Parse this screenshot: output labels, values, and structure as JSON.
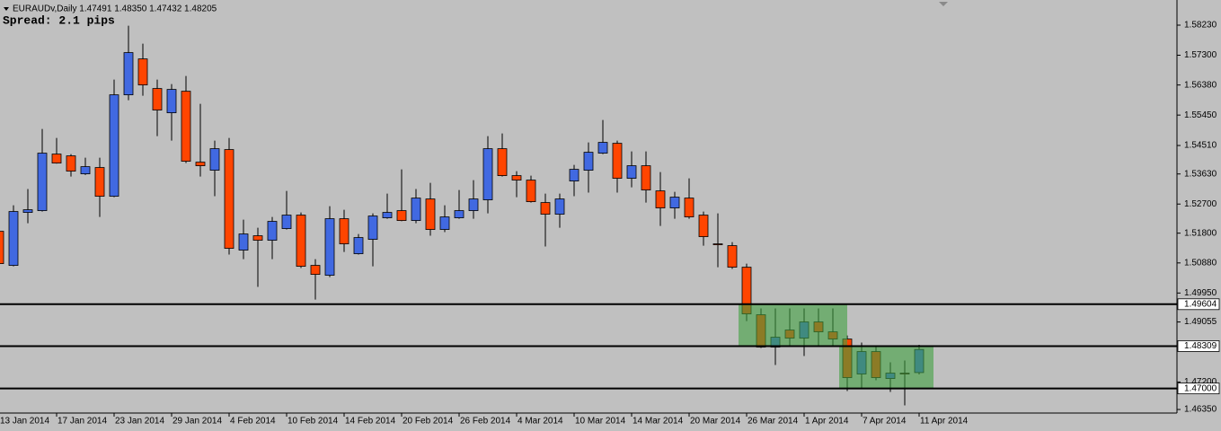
{
  "chart_data": {
    "type": "candlestick",
    "title": "EURAUDv,Daily 1.47491 1.48350 1.47432 1.48205",
    "subtitle": "Spread: 2.1 pips",
    "up_color": "#4169e1",
    "down_color": "#ff4500",
    "zone_color": "#3fa03f",
    "categories": [
      "13 Jan 2014",
      null,
      null,
      null,
      "17 Jan 2014",
      null,
      null,
      null,
      "23 Jan 2014",
      null,
      null,
      null,
      "29 Jan 2014",
      null,
      null,
      null,
      "4 Feb 2014",
      null,
      null,
      null,
      "10 Feb 2014",
      null,
      null,
      null,
      "14 Feb 2014",
      null,
      null,
      null,
      "20 Feb 2014",
      null,
      null,
      null,
      "26 Feb 2014",
      null,
      null,
      null,
      "4 Mar 2014",
      null,
      null,
      null,
      "10 Mar 2014",
      null,
      null,
      null,
      "14 Mar 2014",
      null,
      null,
      null,
      "20 Mar 2014",
      null,
      null,
      null,
      "26 Mar 2014",
      null,
      null,
      null,
      "1 Apr 2014",
      null,
      null,
      null,
      "7 Apr 2014",
      null,
      null,
      null,
      "11 Apr 2014"
    ],
    "open": [
      1.51858,
      1.50804,
      1.52441,
      1.52497,
      1.54245,
      1.54189,
      1.53634,
      1.53829,
      1.52941,
      1.56076,
      1.57186,
      1.56271,
      1.55521,
      1.56187,
      1.53995,
      1.53745,
      1.54384,
      1.51276,
      1.5172,
      1.51581,
      1.51942,
      1.52358,
      1.50804,
      1.50499,
      1.52247,
      1.51165,
      1.51609,
      1.52275,
      1.52497,
      1.52191,
      1.52857,
      1.51914,
      1.52275,
      1.52497,
      1.5283,
      1.54411,
      1.53579,
      1.5344,
      1.52746,
      1.52386,
      1.53412,
      1.53745,
      1.54273,
      1.54578,
      1.53496,
      1.53884,
      1.53107,
      1.5258,
      1.52885,
      1.52358,
      1.5147,
      1.51414,
      1.50748,
      1.49278,
      1.48279,
      1.48806,
      1.48556,
      1.49056,
      1.4875,
      1.48528,
      1.47446,
      1.4814,
      1.47307,
      1.47474,
      1.47491
    ],
    "high": [
      1.51914,
      1.52663,
      1.53163,
      1.55022,
      1.54744,
      1.54245,
      1.54134,
      1.54134,
      1.56548,
      1.58213,
      1.57658,
      1.56548,
      1.56409,
      1.56659,
      1.55799,
      1.54661,
      1.54744,
      1.52219,
      1.51969,
      1.52302,
      1.53107,
      1.52441,
      1.50998,
      1.52635,
      1.52524,
      1.51775,
      1.52413,
      1.53024,
      1.53773,
      1.53163,
      1.53357,
      1.52663,
      1.53135,
      1.5344,
      1.548,
      1.54883,
      1.53718,
      1.53579,
      1.53024,
      1.53024,
      1.53912,
      1.54606,
      1.55299,
      1.54661,
      1.54328,
      1.54328,
      1.5369,
      1.53079,
      1.53496,
      1.52469,
      1.52413,
      1.51525,
      1.50859,
      1.49472,
      1.49472,
      1.49472,
      1.49472,
      1.49472,
      1.49472,
      1.48639,
      1.48417,
      1.48279,
      1.47807,
      1.47862,
      1.4835
    ],
    "low": [
      1.50804,
      1.50776,
      1.52108,
      1.52469,
      1.5395,
      1.53551,
      1.536,
      1.52302,
      1.52913,
      1.5591,
      1.56049,
      1.548,
      1.54661,
      1.53967,
      1.53551,
      1.52941,
      1.51137,
      1.50998,
      1.50138,
      1.50998,
      1.51914,
      1.50721,
      1.49749,
      1.50443,
      1.5122,
      1.51137,
      1.50776,
      1.52247,
      1.5217,
      1.52108,
      1.5172,
      1.51831,
      1.52247,
      1.52247,
      1.52413,
      1.53551,
      1.52913,
      1.52746,
      1.51387,
      1.51969,
      1.52941,
      1.53052,
      1.54245,
      1.53052,
      1.53218,
      1.52746,
      1.52025,
      1.52247,
      1.52247,
      1.51414,
      1.50748,
      1.50693,
      1.49083,
      1.48251,
      1.47724,
      1.48279,
      1.48001,
      1.48279,
      1.48279,
      1.46919,
      1.46974,
      1.47252,
      1.46891,
      1.46475,
      1.47432
    ],
    "close": [
      1.50859,
      1.52469,
      1.52524,
      1.54273,
      1.53967,
      1.53718,
      1.53856,
      1.52941,
      1.56076,
      1.57381,
      1.56382,
      1.55605,
      1.56243,
      1.54023,
      1.53884,
      1.54411,
      1.51331,
      1.51775,
      1.51581,
      1.52164,
      1.52358,
      1.50776,
      1.50526,
      1.52247,
      1.5147,
      1.51664,
      1.5233,
      1.52441,
      1.52191,
      1.52885,
      1.51914,
      1.52302,
      1.52497,
      1.52857,
      1.54411,
      1.53579,
      1.5344,
      1.52774,
      1.52386,
      1.52857,
      1.53773,
      1.543,
      1.54606,
      1.53496,
      1.53884,
      1.53135,
      1.5258,
      1.52913,
      1.52302,
      1.51692,
      1.51442,
      1.50748,
      1.49305,
      1.48279,
      1.48584,
      1.48556,
      1.49056,
      1.4875,
      1.48528,
      1.47335,
      1.4814,
      1.47335,
      1.47474,
      1.47446,
      1.48205
    ],
    "ylim": [
      1.4624,
      1.59007
    ],
    "yticks": [
      {
        "value": 1.5823,
        "label": "1.58230"
      },
      {
        "value": 1.573,
        "label": "1.57300"
      },
      {
        "value": 1.5638,
        "label": "1.56380"
      },
      {
        "value": 1.5545,
        "label": "1.55450"
      },
      {
        "value": 1.5451,
        "label": "1.54510"
      },
      {
        "value": 1.5363,
        "label": "1.53630"
      },
      {
        "value": 1.527,
        "label": "1.52700"
      },
      {
        "value": 1.518,
        "label": "1.51800"
      },
      {
        "value": 1.5088,
        "label": "1.50880"
      },
      {
        "value": 1.4995,
        "label": "1.49950"
      },
      1.49055,
      {
        "value": 1.472,
        "label": "1.47200"
      },
      {
        "value": 1.4635,
        "label": "1.46350"
      }
    ],
    "levels": [
      1.49604,
      1.48309,
      {
        "value": 1.47,
        "label": "1.47000"
      }
    ]
  }
}
